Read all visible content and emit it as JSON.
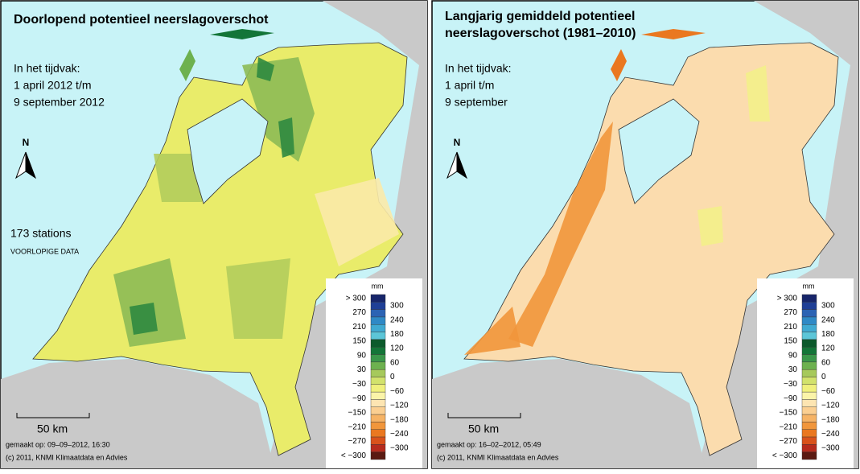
{
  "north": "N",
  "panels": [
    {
      "title_lines": [
        "Doorlopend potentieel neerslagoverschot"
      ],
      "period_lines": [
        "In het tijdvak:",
        "1 april 2012 t/m",
        "9 september 2012"
      ],
      "stations": "173 stations",
      "note": "VOORLOPIGE DATA",
      "scale": "50 km",
      "made": "gemaakt op: 09–09–2012, 16:30",
      "copyright": "(c) 2011, KNMI Klimaatdata en Advies"
    },
    {
      "title_lines": [
        "Langjarig gemiddeld potentieel",
        "neerslagoverschot (1981–2010)"
      ],
      "period_lines": [
        "In het tijdvak:",
        "1 april t/m",
        "9 september"
      ],
      "scale": "50 km",
      "made": "gemaakt op: 16–02–2012, 05:49",
      "copyright": "(c) 2011, KNMI Klimaatdata en Advies"
    }
  ],
  "legend": {
    "unit": "mm",
    "left_labels": [
      "> 300",
      "270",
      "210",
      "150",
      "90",
      "30",
      "−30",
      "−90",
      "−150",
      "−210",
      "−270",
      "< −300"
    ],
    "right_labels": [
      "300",
      "240",
      "180",
      "120",
      "60",
      "0",
      "−60",
      "−120",
      "−180",
      "−240",
      "−300"
    ],
    "colors": [
      "#17256a",
      "#1f3f96",
      "#2c63b4",
      "#2f89c6",
      "#40aad2",
      "#5cc6d8",
      "#0c5a2c",
      "#137538",
      "#3a974a",
      "#6db14f",
      "#a6c95b",
      "#d2e26c",
      "#f0f07c",
      "#fbf4a9",
      "#fde5b2",
      "#fbcf91",
      "#f6b365",
      "#f1963b",
      "#ea7820",
      "#d9521b",
      "#b62b1d",
      "#5a1a12"
    ]
  }
}
